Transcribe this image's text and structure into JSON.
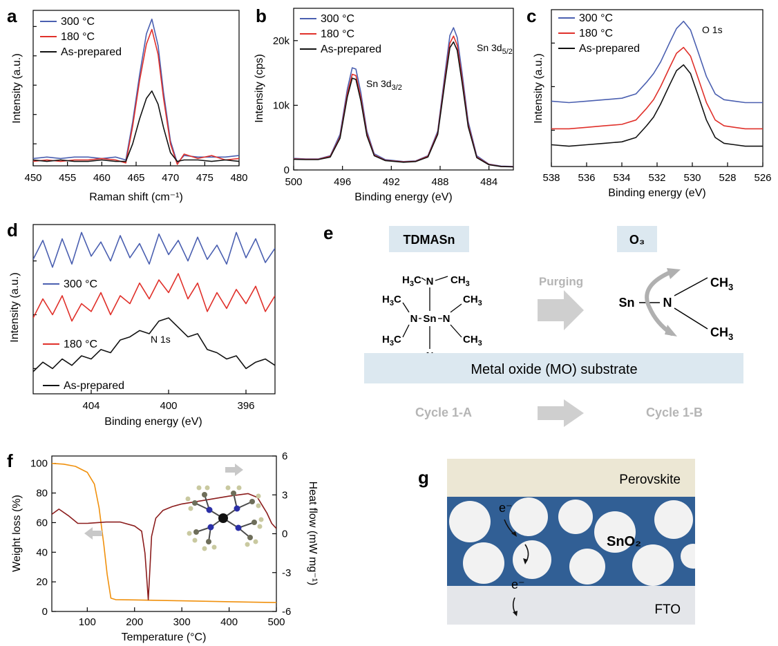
{
  "panels": {
    "a": {
      "label": "a",
      "xlabel": "Raman shift (cm⁻¹)",
      "ylabel": "Intensity (a.u.)"
    },
    "b": {
      "label": "b",
      "xlabel": "Binding energy (eV)",
      "ylabel": "Intensity (cps)",
      "peak1": "Sn 3d3/2",
      "peak2": "Sn 3d5/2"
    },
    "c": {
      "label": "c",
      "xlabel": "Binding energy (eV)",
      "ylabel": "Intensity (a.u.)",
      "peak": "O 1s"
    },
    "d": {
      "label": "d",
      "xlabel": "Binding energy (eV)",
      "ylabel": "Intensity (a.u.)",
      "peak": "N 1s"
    },
    "e": {
      "label": "e",
      "precursor": "TDMASn",
      "reactant": "O₃",
      "purging": "Purging",
      "substrate": "Metal oxide (MO) substrate",
      "cycle_a": "Cycle 1-A",
      "cycle_b": "Cycle 1-B",
      "ligand_left": "Sn",
      "ligand_n": "N",
      "ligand_ch3": "CH₃"
    },
    "f": {
      "label": "f",
      "xlabel": "Temperature (°C)",
      "ylabel_left": "Weight loss (%)",
      "ylabel_right": "Heat flow (mW mg⁻¹)"
    },
    "g": {
      "label": "g",
      "top_layer": "Perovskite",
      "middle_layer": "SnO₂",
      "bottom_layer": "FTO",
      "electron": "e⁻"
    }
  },
  "colors": {
    "c300": "#4a5fb0",
    "c180": "#e0302a",
    "asprep": "#111111",
    "tga": "#f0900c",
    "dsc": "#8b1c1c",
    "substrate": "#dce8f0",
    "sno2": "#315f95",
    "perovskite": "#ece7d4",
    "fto": "#e4e6ea",
    "arrow": "#c8c8c8"
  },
  "chart_data": [
    {
      "panel": "a",
      "type": "line",
      "xlabel": "Raman shift (cm⁻¹)",
      "ylabel": "Intensity (a.u.)",
      "xlim": [
        450,
        480
      ],
      "xticks": [
        450,
        455,
        460,
        465,
        470,
        475,
        480
      ],
      "xticklabels": [
        "450",
        "455",
        "460",
        "465",
        "470",
        "475",
        "480"
      ],
      "legend": [
        "300 °C",
        "180 °C",
        "As-prepared"
      ],
      "legend_position": "top-left",
      "series": [
        {
          "name": "300 °C",
          "x": [
            450,
            452,
            454,
            456,
            458,
            460,
            462,
            463.5,
            464.5,
            465.5,
            466.5,
            467.3,
            468.2,
            469,
            470,
            471,
            472,
            474,
            476,
            478,
            480
          ],
          "y": [
            0.05,
            0.06,
            0.05,
            0.06,
            0.06,
            0.05,
            0.06,
            0.04,
            0.3,
            0.62,
            0.9,
            1.0,
            0.82,
            0.5,
            0.17,
            0.02,
            0.07,
            0.06,
            0.06,
            0.06,
            0.07
          ]
        },
        {
          "name": "180 °C",
          "x": [
            450,
            452,
            454,
            456,
            458,
            460,
            462,
            463.5,
            464.5,
            465.5,
            466.5,
            467.3,
            468.2,
            469,
            470,
            471,
            472,
            474,
            476,
            478,
            480
          ],
          "y": [
            0.03,
            0.04,
            0.03,
            0.04,
            0.04,
            0.05,
            0.04,
            0.02,
            0.27,
            0.58,
            0.83,
            0.93,
            0.76,
            0.46,
            0.15,
            0.01,
            0.08,
            0.05,
            0.07,
            0.04,
            0.05
          ]
        },
        {
          "name": "As-prepared",
          "x": [
            450,
            452,
            454,
            456,
            458,
            460,
            462,
            463.5,
            464.5,
            465.5,
            466.5,
            467.3,
            468.2,
            469,
            470,
            471,
            472,
            474,
            476,
            478,
            480
          ],
          "y": [
            0.04,
            0.03,
            0.04,
            0.03,
            0.03,
            0.04,
            0.03,
            0.03,
            0.15,
            0.32,
            0.46,
            0.51,
            0.42,
            0.26,
            0.09,
            0.03,
            0.04,
            0.04,
            0.03,
            0.04,
            0.03
          ]
        }
      ]
    },
    {
      "panel": "b",
      "type": "line",
      "xlabel": "Binding energy (eV)",
      "ylabel": "Intensity (cps)",
      "xlim": [
        500,
        482
      ],
      "xticks": [
        500,
        496,
        492,
        488,
        484
      ],
      "xticklabels": [
        "500",
        "496",
        "492",
        "488",
        "484"
      ],
      "ylim": [
        0,
        25000
      ],
      "yticks": [
        0,
        10000,
        20000
      ],
      "yticklabels": [
        "0",
        "10k",
        "20k"
      ],
      "legend": [
        "300 °C",
        "180 °C",
        "As-prepared"
      ],
      "legend_position": "top-left",
      "series": [
        {
          "name": "300 °C",
          "x": [
            500,
            499,
            498,
            497,
            496.2,
            495.6,
            495.2,
            494.9,
            494.5,
            494,
            493.4,
            492.5,
            491,
            490,
            489,
            488.2,
            487.6,
            487.2,
            486.9,
            486.6,
            486.2,
            485.7,
            485,
            484,
            483,
            482
          ],
          "y": [
            1800,
            1700,
            1700,
            2200,
            5500,
            12500,
            15800,
            15600,
            12000,
            6000,
            2500,
            1600,
            1300,
            1400,
            2200,
            6000,
            15000,
            20800,
            22000,
            20500,
            15000,
            7500,
            2200,
            900,
            600,
            550
          ]
        },
        {
          "name": "180 °C",
          "x": [
            500,
            499,
            498,
            497,
            496.2,
            495.6,
            495.2,
            494.9,
            494.5,
            494,
            493.4,
            492.5,
            491,
            490,
            489,
            488.2,
            487.6,
            487.2,
            486.9,
            486.6,
            486.2,
            485.7,
            485,
            484,
            483,
            482
          ],
          "y": [
            1700,
            1650,
            1650,
            2100,
            5100,
            11800,
            14800,
            14600,
            11200,
            5600,
            2300,
            1500,
            1250,
            1350,
            2100,
            5700,
            14200,
            19600,
            20700,
            19300,
            14100,
            7000,
            2000,
            850,
            550,
            500
          ]
        },
        {
          "name": "As-prepared",
          "x": [
            500,
            499,
            498,
            497,
            496.2,
            495.6,
            495.2,
            494.9,
            494.5,
            494,
            493.4,
            492.5,
            491,
            490,
            489,
            488.2,
            487.6,
            487.2,
            486.9,
            486.6,
            486.2,
            485.7,
            485,
            484,
            483,
            482
          ],
          "y": [
            1650,
            1600,
            1600,
            2000,
            4900,
            11300,
            14200,
            14000,
            10700,
            5300,
            2200,
            1450,
            1200,
            1300,
            2000,
            5500,
            13700,
            18900,
            19800,
            18500,
            13500,
            6700,
            1900,
            800,
            520,
            480
          ]
        }
      ]
    },
    {
      "panel": "c",
      "type": "line",
      "xlabel": "Binding energy (eV)",
      "ylabel": "Intensity (a.u.)",
      "xlim": [
        538,
        526
      ],
      "xticks": [
        538,
        536,
        534,
        532,
        530,
        528,
        526
      ],
      "xticklabels": [
        "538",
        "536",
        "534",
        "532",
        "530",
        "528",
        "526"
      ],
      "legend": [
        "300 °C",
        "180 °C",
        "As-prepared"
      ],
      "legend_position": "top-left",
      "series": [
        {
          "name": "300 °C",
          "x": [
            538,
            537,
            536,
            535,
            534,
            533.2,
            532.6,
            532.2,
            531.8,
            531.3,
            530.9,
            530.5,
            530.1,
            529.7,
            529.2,
            528.7,
            528.2,
            527.6,
            527,
            526.4,
            526
          ],
          "y": [
            0.45,
            0.44,
            0.45,
            0.46,
            0.47,
            0.5,
            0.58,
            0.64,
            0.72,
            0.85,
            0.95,
            1.0,
            0.94,
            0.8,
            0.62,
            0.5,
            0.46,
            0.45,
            0.44,
            0.44,
            0.44
          ]
        },
        {
          "name": "180 °C",
          "x": [
            538,
            537,
            536,
            535,
            534,
            533.2,
            532.6,
            532.2,
            531.8,
            531.3,
            530.9,
            530.5,
            530.1,
            529.7,
            529.2,
            528.7,
            528.2,
            527.6,
            527,
            526.4,
            526
          ],
          "y": [
            0.26,
            0.26,
            0.27,
            0.28,
            0.29,
            0.32,
            0.4,
            0.46,
            0.55,
            0.68,
            0.78,
            0.82,
            0.76,
            0.62,
            0.44,
            0.32,
            0.28,
            0.27,
            0.26,
            0.26,
            0.26
          ]
        },
        {
          "name": "As-prepared",
          "x": [
            538,
            537,
            536,
            535,
            534,
            533.2,
            532.6,
            532.2,
            531.8,
            531.3,
            530.9,
            530.5,
            530.1,
            529.7,
            529.2,
            528.7,
            528.2,
            527.6,
            527,
            526.4,
            526
          ],
          "y": [
            0.15,
            0.14,
            0.15,
            0.16,
            0.17,
            0.2,
            0.28,
            0.34,
            0.43,
            0.56,
            0.66,
            0.7,
            0.64,
            0.5,
            0.32,
            0.2,
            0.16,
            0.15,
            0.14,
            0.14,
            0.14
          ]
        }
      ]
    },
    {
      "panel": "d",
      "type": "line",
      "xlabel": "Binding energy (eV)",
      "ylabel": "Intensity (a.u.)",
      "xlim": [
        407,
        394.5
      ],
      "xticks": [
        404,
        400,
        396
      ],
      "xticklabels": [
        "404",
        "400",
        "396"
      ],
      "legend": [
        "300 °C",
        "180 °C",
        "As-prepared"
      ],
      "legend_position": "stacked, left",
      "series": [
        {
          "name": "300 °C",
          "x": [
            407,
            406.5,
            406,
            405.5,
            405,
            404.5,
            404,
            403.5,
            403,
            402.5,
            402,
            401.5,
            401,
            400.5,
            400,
            399.5,
            399,
            398.5,
            398,
            397.5,
            397,
            396.5,
            396,
            395.5,
            395,
            394.5
          ],
          "y": [
            0.83,
            0.95,
            0.78,
            0.96,
            0.8,
            1.0,
            0.85,
            0.94,
            0.82,
            0.98,
            0.84,
            0.93,
            0.8,
            0.99,
            0.86,
            0.95,
            0.82,
            0.97,
            0.83,
            0.92,
            0.8,
            1.0,
            0.84,
            0.96,
            0.81,
            0.9
          ]
        },
        {
          "name": "180 °C",
          "x": [
            407,
            406.5,
            406,
            405.5,
            405,
            404.5,
            404,
            403.5,
            403,
            402.5,
            402,
            401.5,
            401,
            400.5,
            400,
            399.5,
            399,
            398.5,
            398,
            397.5,
            397,
            396.5,
            396,
            395.5,
            395,
            394.5
          ],
          "y": [
            0.46,
            0.58,
            0.48,
            0.6,
            0.44,
            0.55,
            0.5,
            0.62,
            0.48,
            0.6,
            0.55,
            0.68,
            0.58,
            0.7,
            0.62,
            0.74,
            0.58,
            0.68,
            0.5,
            0.62,
            0.52,
            0.64,
            0.55,
            0.66,
            0.5,
            0.6
          ]
        },
        {
          "name": "As-prepared",
          "x": [
            407,
            406.5,
            406,
            405.5,
            405,
            404.5,
            404,
            403.5,
            403,
            402.5,
            402,
            401.5,
            401,
            400.5,
            400,
            399.5,
            399,
            398.5,
            398,
            397.5,
            397,
            396.5,
            396,
            395.5,
            395,
            394.5
          ],
          "y": [
            0.12,
            0.18,
            0.14,
            0.2,
            0.16,
            0.22,
            0.2,
            0.26,
            0.24,
            0.32,
            0.34,
            0.38,
            0.36,
            0.44,
            0.46,
            0.4,
            0.34,
            0.36,
            0.26,
            0.24,
            0.2,
            0.22,
            0.14,
            0.18,
            0.2,
            0.16
          ]
        }
      ]
    },
    {
      "panel": "f",
      "type": "line",
      "xlabel": "Temperature (°C)",
      "xlim": [
        25,
        500
      ],
      "xticks": [
        100,
        200,
        300,
        400,
        500
      ],
      "xticklabels": [
        "100",
        "200",
        "300",
        "400",
        "500"
      ],
      "ylabel_left": "Weight loss (%)",
      "ylim_left": [
        0,
        105
      ],
      "yticks_left": [
        0,
        20,
        40,
        60,
        80,
        100
      ],
      "yticklabels_left": [
        "0",
        "20",
        "40",
        "60",
        "80",
        "100"
      ],
      "ylabel_right": "Heat flow (mW mg⁻¹)",
      "ylim_right": [
        -6,
        6
      ],
      "yticks_right": [
        -6,
        -3,
        0,
        3,
        6
      ],
      "yticklabels_right": [
        "-6",
        "-3",
        "0",
        "3",
        "6"
      ],
      "series": [
        {
          "name": "Weight loss",
          "axis": "left",
          "x": [
            25,
            50,
            75,
            100,
            115,
            125,
            135,
            142,
            150,
            160,
            200,
            300,
            400,
            500
          ],
          "y": [
            100,
            99.5,
            98,
            94,
            86,
            70,
            45,
            25,
            9,
            8,
            7.8,
            7.2,
            6.6,
            6
          ]
        },
        {
          "name": "Heat flow",
          "axis": "right",
          "x": [
            25,
            40,
            60,
            80,
            100,
            140,
            170,
            200,
            215,
            222,
            226,
            229,
            231,
            236,
            245,
            260,
            280,
            300,
            350,
            400,
            440,
            460,
            480,
            490,
            500
          ],
          "y": [
            1.5,
            1.9,
            1.4,
            0.8,
            0.8,
            0.9,
            0.9,
            0.6,
            0.2,
            -1.5,
            -3.5,
            -5.1,
            -3.8,
            -0.2,
            1.2,
            1.8,
            2.1,
            2.3,
            2.6,
            2.9,
            3.1,
            2.8,
            1.6,
            0.8,
            0.4
          ]
        }
      ]
    }
  ]
}
